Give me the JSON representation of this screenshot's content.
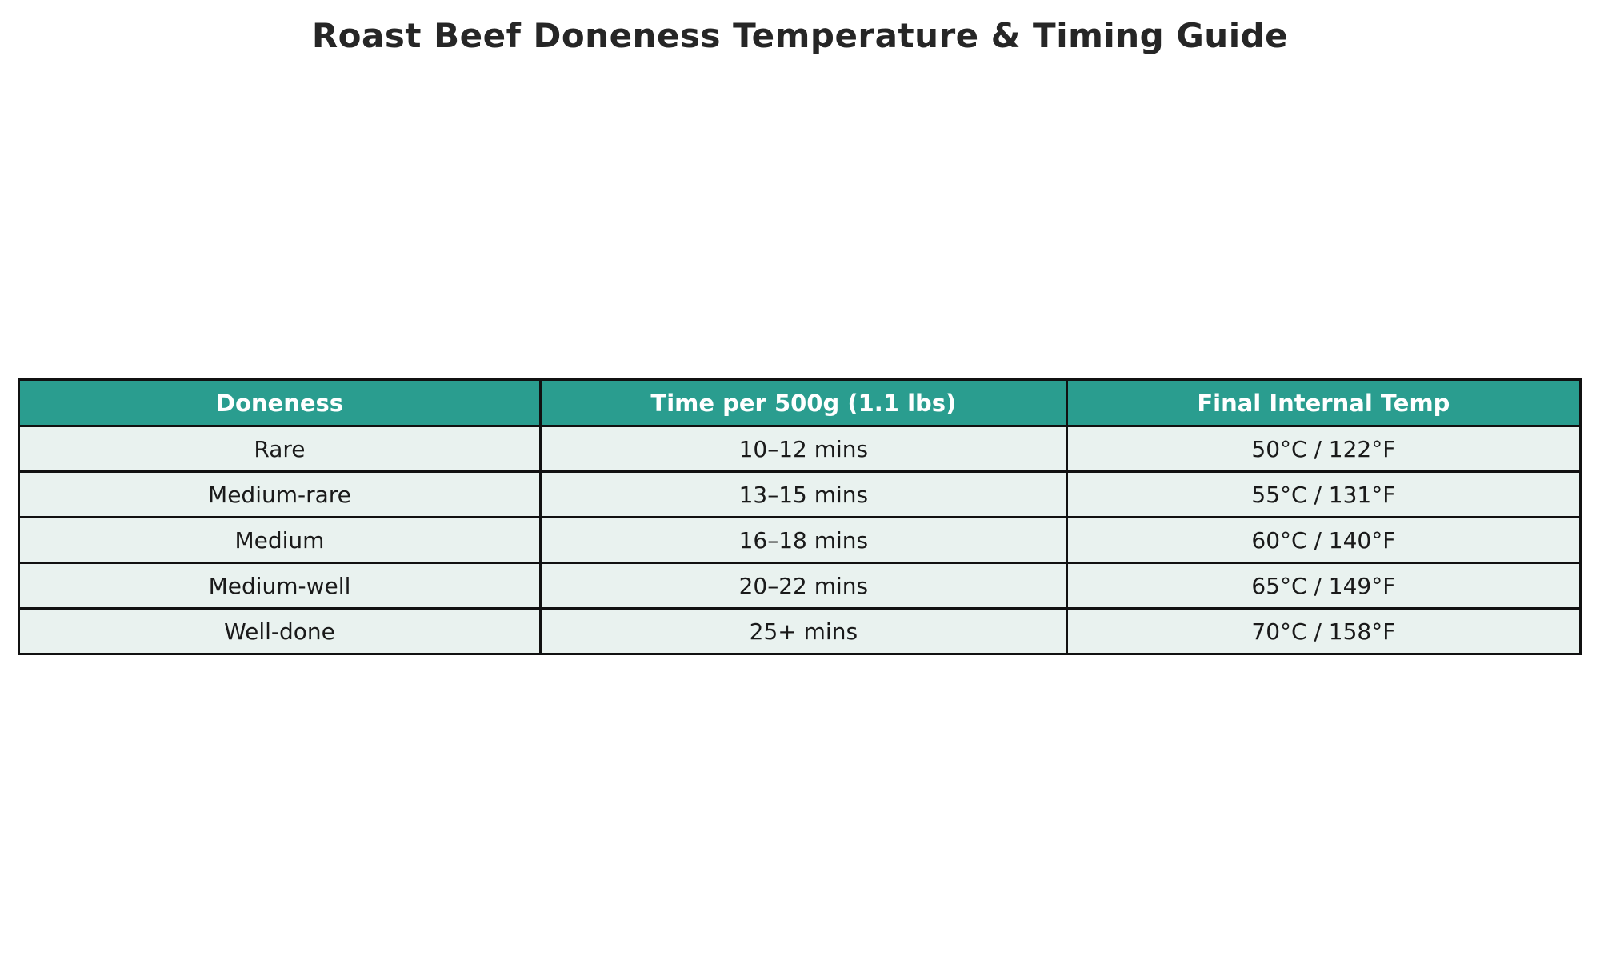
{
  "title": "Roast Beef Doneness Temperature & Timing Guide",
  "chart_data": {
    "type": "table",
    "title": "Roast Beef Doneness Temperature & Timing Guide",
    "columns": [
      "Doneness",
      "Time per 500g (1.1 lbs)",
      "Final Internal Temp"
    ],
    "rows": [
      [
        "Rare",
        "10–12 mins",
        "50°C / 122°F"
      ],
      [
        "Medium-rare",
        "13–15 mins",
        "55°C / 131°F"
      ],
      [
        "Medium",
        "16–18 mins",
        "60°C / 140°F"
      ],
      [
        "Medium-well",
        "20–22 mins",
        "65°C / 149°F"
      ],
      [
        "Well-done",
        "25+ mins",
        "70°C / 158°F"
      ]
    ],
    "legend": "none",
    "grid": "full-borders"
  },
  "colors": {
    "header_bg": "#2a9d8f",
    "header_text": "#ffffff",
    "row_bg": "#e9f2ef",
    "border": "#111111",
    "title_text": "#262626",
    "cell_text": "#1a1a1a",
    "page_bg": "#ffffff"
  }
}
